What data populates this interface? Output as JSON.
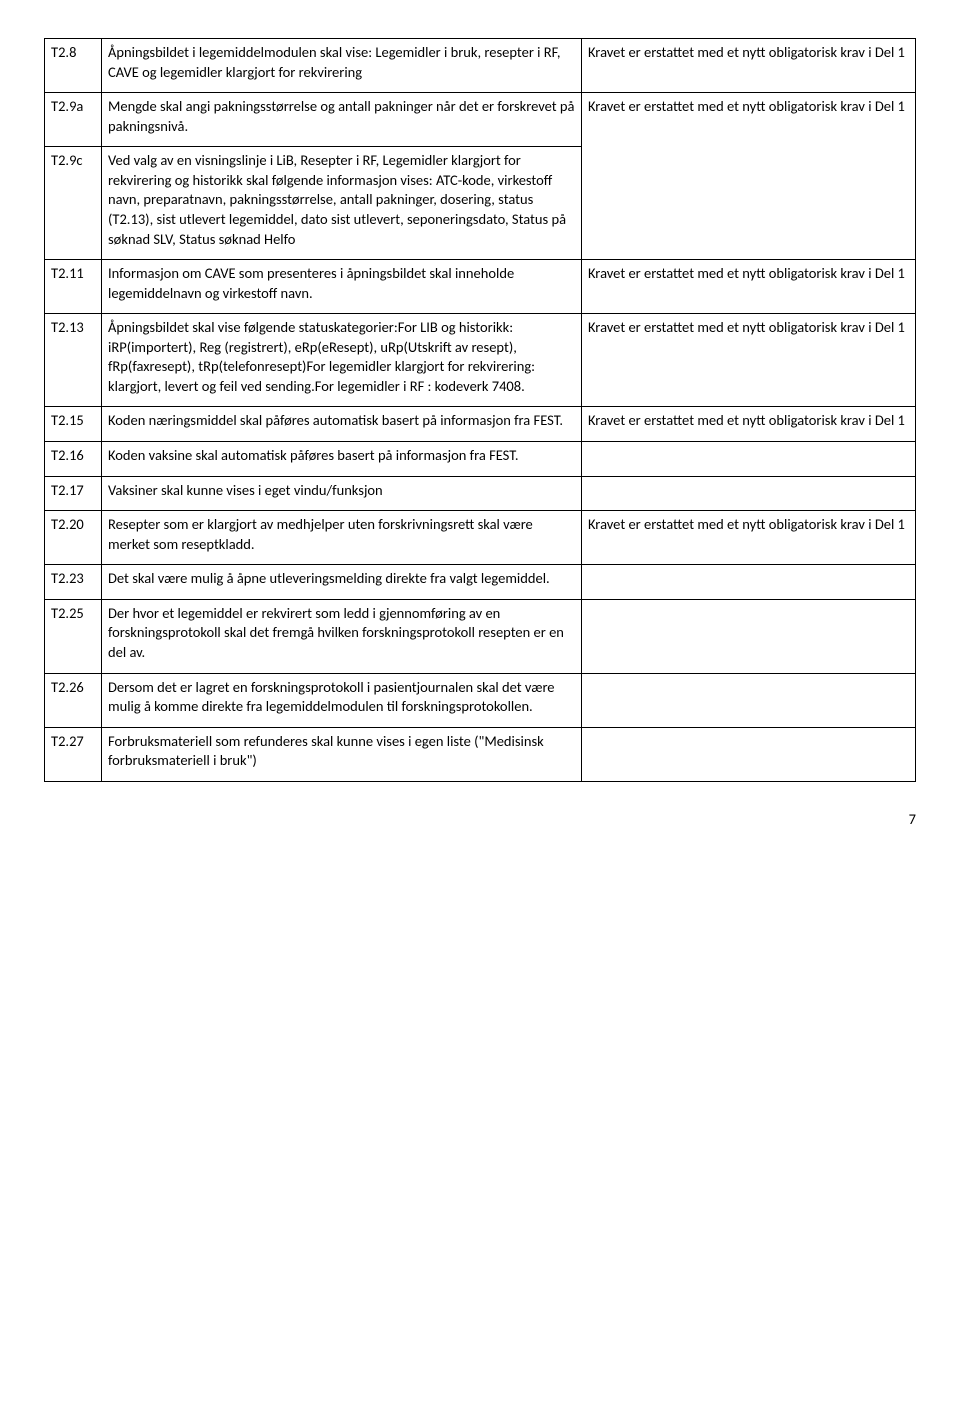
{
  "rows": [
    {
      "id": "T2.8",
      "desc": "Åpningsbildet i legemiddelmodulen skal vise: Legemidler i bruk, resepter i RF, CAVE og legemidler klargjort for rekvirering",
      "note": "Kravet er erstattet med et nytt obligatorisk krav i Del 1",
      "row1_id": "T2.9a",
      "row1_desc": "Mengde skal angi pakningsstørrelse og antall pakninger når det er forskrevet på pakningsnivå.",
      "row2_id": "T2.9c",
      "row2_desc": "Ved valg av en visningslinje i LiB, Resepter i RF, Legemidler klargjort for rekvirering og historikk skal følgende informasjon vises: ATC-kode, virkestoff navn, preparatnavn, pakningsstørrelse, antall pakninger, dosering, status (T2.13), sist utlevert legemiddel, dato sist utlevert, seponeringsdato, Status på søknad SLV, Status søknad Helfo",
      "row2_note": "Kravet er erstattet med et nytt obligatorisk krav i Del 1"
    },
    {
      "id": "T2.11",
      "desc": "Informasjon om CAVE som presenteres i åpningsbildet skal inneholde legemiddelnavn og virkestoff navn.",
      "note": "Kravet er erstattet med et nytt obligatorisk krav i Del 1"
    },
    {
      "id": "T2.13",
      "desc": "Åpningsbildet skal vise følgende statuskategorier:For LIB og historikk: iRP(importert), Reg (registrert), eRp(eResept), uRp(Utskrift av resept), fRp(faxresept), tRp(telefonresept)For legemidler klargjort for rekvirering: klargjort, levert og feil ved sending.For legemidler i RF : kodeverk 7408.",
      "note": "Kravet er erstattet med et nytt obligatorisk krav i Del 1"
    },
    {
      "id": "T2.15",
      "desc": "Koden næringsmiddel skal påføres automatisk basert på informasjon fra FEST.",
      "note": "Kravet er erstattet med et nytt obligatorisk krav i Del 1"
    },
    {
      "id": "T2.16",
      "desc": "Koden vaksine skal automatisk påføres basert på informasjon fra FEST.",
      "note": ""
    },
    {
      "id": "T2.17",
      "desc": "Vaksiner skal kunne vises i eget vindu/funksjon",
      "note": ""
    },
    {
      "id": "T2.20",
      "desc": "Resepter som er klargjort av medhjelper uten forskrivningsrett skal være merket som reseptkladd.",
      "note": "Kravet er erstattet med et nytt obligatorisk krav i Del 1"
    },
    {
      "id": "T2.23",
      "desc": "Det skal være mulig å åpne utleveringsmelding direkte fra valgt legemiddel.",
      "note": ""
    },
    {
      "id": "T2.25",
      "desc": "Der hvor et legemiddel er rekvirert som ledd i gjennomføring av en forskningsprotokoll skal det fremgå hvilken forskningsprotokoll resepten er en del av.",
      "note": ""
    },
    {
      "id": "T2.26",
      "desc": "Dersom det er lagret en forskningsprotokoll i pasientjournalen skal det være mulig å komme direkte fra legemiddelmodulen til forskningsprotokollen.",
      "note": ""
    },
    {
      "id": "T2.27",
      "desc": "Forbruksmateriell som refunderes skal kunne vises i egen liste (\"Medisinsk forbruksmateriell i bruk\")",
      "note": ""
    }
  ],
  "page_number": "7"
}
